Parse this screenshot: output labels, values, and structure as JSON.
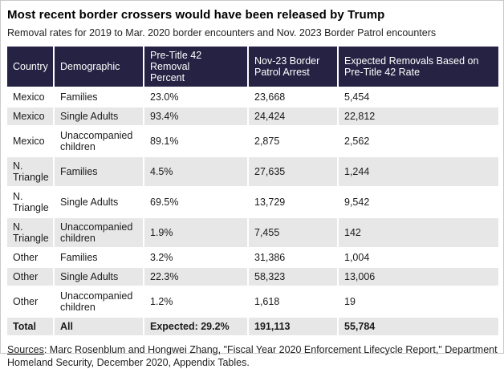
{
  "chart_data": {
    "type": "table",
    "title": "Most recent border crossers would have been released by Trump",
    "subtitle": "Removal rates for 2019 to Mar. 2020 border encounters and Nov. 2023 Border Patrol encounters",
    "columns": [
      "Country",
      "Demographic",
      "Pre-Title 42 Removal Percent",
      "Nov-23 Border Patrol Arrest",
      "Expected Removals Based on Pre-Title 42 Rate"
    ],
    "rows": [
      {
        "country": "Mexico",
        "demographic": "Families",
        "removal_percent": "23.0%",
        "arrests": "23,668",
        "expected": "5,454"
      },
      {
        "country": "Mexico",
        "demographic": "Single Adults",
        "removal_percent": "93.4%",
        "arrests": "24,424",
        "expected": "22,812"
      },
      {
        "country": "Mexico",
        "demographic": "Unaccompanied children",
        "removal_percent": "89.1%",
        "arrests": "2,875",
        "expected": "2,562"
      },
      {
        "country": "N. Triangle",
        "demographic": "Families",
        "removal_percent": "4.5%",
        "arrests": "27,635",
        "expected": "1,244"
      },
      {
        "country": "N. Triangle",
        "demographic": "Single Adults",
        "removal_percent": "69.5%",
        "arrests": "13,729",
        "expected": "9,542"
      },
      {
        "country": "N. Triangle",
        "demographic": "Unaccompanied children",
        "removal_percent": "1.9%",
        "arrests": "7,455",
        "expected": "142"
      },
      {
        "country": "Other",
        "demographic": "Families",
        "removal_percent": "3.2%",
        "arrests": "31,386",
        "expected": "1,004"
      },
      {
        "country": "Other",
        "demographic": "Single Adults",
        "removal_percent": "22.3%",
        "arrests": "58,323",
        "expected": "13,006"
      },
      {
        "country": "Other",
        "demographic": "Unaccompanied children",
        "removal_percent": "1.2%",
        "arrests": "1,618",
        "expected": "19"
      }
    ],
    "total": {
      "country": "Total",
      "demographic": "All",
      "removal_percent": "Expected: 29.2%",
      "arrests": "191,113",
      "expected": "55,784"
    }
  },
  "footer": {
    "sources_label": "Sources",
    "sources_rest": ": Marc Rosenblum and Hongwei Zhang, \"Fiscal Year 2020 Enforcement Lifecycle Report,\" Department Homeland Security, December 2020, Appendix Tables."
  },
  "colors": {
    "header_bg": "#252243",
    "header_text": "#ffffff",
    "alt_row_bg": "#e7e7e7",
    "body_text": "#1b1b1b",
    "canvas_border": "#c9c9c9"
  }
}
